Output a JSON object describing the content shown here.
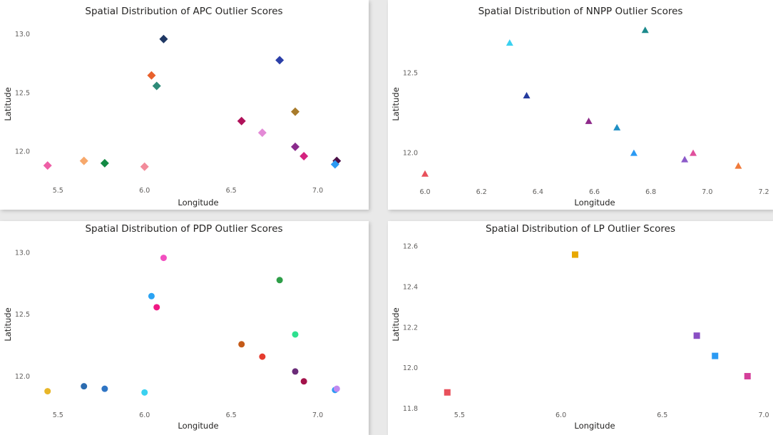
{
  "chart_data": [
    {
      "type": "scatter",
      "title": "Spatial Distribution of APC Outlier Scores",
      "xlabel": "Longitude",
      "ylabel": "Latitude",
      "xlim": [
        5.4,
        7.15
      ],
      "ylim": [
        11.82,
        13.05
      ],
      "xticks": [
        "5.5",
        "6.0",
        "6.5",
        "7.0"
      ],
      "yticks": [
        "12.0",
        "12.5",
        "13.0"
      ],
      "marker": "diamond",
      "grid": false,
      "points": [
        {
          "x": 6.11,
          "y": 12.96,
          "color": "#1f3864"
        },
        {
          "x": 6.78,
          "y": 12.78,
          "color": "#2b3fa8"
        },
        {
          "x": 6.04,
          "y": 12.65,
          "color": "#e8612c"
        },
        {
          "x": 6.07,
          "y": 12.56,
          "color": "#2e8b78"
        },
        {
          "x": 6.87,
          "y": 12.34,
          "color": "#a87b2b"
        },
        {
          "x": 6.56,
          "y": 12.26,
          "color": "#b0125a"
        },
        {
          "x": 6.68,
          "y": 12.16,
          "color": "#e38ad6"
        },
        {
          "x": 6.87,
          "y": 12.04,
          "color": "#8a2b8c"
        },
        {
          "x": 6.92,
          "y": 11.96,
          "color": "#d4237f"
        },
        {
          "x": 7.11,
          "y": 11.92,
          "color": "#4a1048"
        },
        {
          "x": 7.1,
          "y": 11.89,
          "color": "#2b9af3"
        },
        {
          "x": 5.44,
          "y": 11.88,
          "color": "#ee5fa6"
        },
        {
          "x": 5.65,
          "y": 11.92,
          "color": "#f7a86b"
        },
        {
          "x": 5.77,
          "y": 11.9,
          "color": "#138a44"
        },
        {
          "x": 6.0,
          "y": 11.87,
          "color": "#f28b9a"
        }
      ]
    },
    {
      "type": "scatter",
      "title": "Spatial Distribution of NNPP Outlier Scores",
      "xlabel": "Longitude",
      "ylabel": "Latitude",
      "xlim": [
        6.0,
        7.2
      ],
      "ylim": [
        11.86,
        12.78
      ],
      "xticks": [
        "6.0",
        "6.2",
        "6.4",
        "6.6",
        "6.8",
        "7.0",
        "7.2"
      ],
      "yticks": [
        "12.0",
        "12.5"
      ],
      "marker": "triangle",
      "grid": false,
      "points": [
        {
          "x": 6.78,
          "y": 12.77,
          "color": "#1c8a8c"
        },
        {
          "x": 6.3,
          "y": 12.69,
          "color": "#3ad1f0"
        },
        {
          "x": 6.36,
          "y": 12.36,
          "color": "#243b9e"
        },
        {
          "x": 6.58,
          "y": 12.2,
          "color": "#8e2a8a"
        },
        {
          "x": 6.68,
          "y": 12.16,
          "color": "#1f8fc4"
        },
        {
          "x": 6.74,
          "y": 12.0,
          "color": "#2b9af3"
        },
        {
          "x": 6.92,
          "y": 11.96,
          "color": "#8c5ac9"
        },
        {
          "x": 6.95,
          "y": 12.0,
          "color": "#e04f9c"
        },
        {
          "x": 7.11,
          "y": 11.92,
          "color": "#f07a3a"
        },
        {
          "x": 6.0,
          "y": 11.87,
          "color": "#e8505b"
        }
      ]
    },
    {
      "type": "scatter",
      "title": "Spatial Distribution of PDP Outlier Scores",
      "xlabel": "Longitude",
      "ylabel": "Latitude",
      "xlim": [
        5.4,
        7.15
      ],
      "ylim": [
        11.82,
        13.05
      ],
      "xticks": [
        "5.5",
        "6.0",
        "6.5",
        "7.0"
      ],
      "yticks": [
        "12.0",
        "12.5",
        "13.0"
      ],
      "marker": "circle",
      "grid": false,
      "points": [
        {
          "x": 6.11,
          "y": 12.96,
          "color": "#f24fc0"
        },
        {
          "x": 6.78,
          "y": 12.78,
          "color": "#2e9e48"
        },
        {
          "x": 6.04,
          "y": 12.65,
          "color": "#2ba3f3"
        },
        {
          "x": 6.07,
          "y": 12.56,
          "color": "#f01884"
        },
        {
          "x": 6.87,
          "y": 12.34,
          "color": "#2ee08f"
        },
        {
          "x": 6.56,
          "y": 12.26,
          "color": "#c45a18"
        },
        {
          "x": 6.68,
          "y": 12.16,
          "color": "#e53b2e"
        },
        {
          "x": 6.87,
          "y": 12.04,
          "color": "#6a2b78"
        },
        {
          "x": 6.92,
          "y": 11.96,
          "color": "#a3124a"
        },
        {
          "x": 7.1,
          "y": 11.89,
          "color": "#2b9af3"
        },
        {
          "x": 7.11,
          "y": 11.9,
          "color": "#c08af0"
        },
        {
          "x": 5.44,
          "y": 11.88,
          "color": "#e8b628"
        },
        {
          "x": 5.65,
          "y": 11.92,
          "color": "#2b6cb0"
        },
        {
          "x": 5.77,
          "y": 11.9,
          "color": "#2f75c4"
        },
        {
          "x": 6.0,
          "y": 11.87,
          "color": "#3ad1f0"
        }
      ]
    },
    {
      "type": "scatter",
      "title": "Spatial Distribution of LP Outlier Scores",
      "xlabel": "Longitude",
      "ylabel": "Latitude",
      "xlim": [
        5.33,
        7.0
      ],
      "ylim": [
        11.8,
        12.62
      ],
      "xticks": [
        "5.5",
        "6.0",
        "6.5",
        "7.0"
      ],
      "yticks": [
        "11.8",
        "12.0",
        "12.2",
        "12.4",
        "12.6"
      ],
      "marker": "square",
      "grid": false,
      "points": [
        {
          "x": 6.07,
          "y": 12.56,
          "color": "#e8a800"
        },
        {
          "x": 6.67,
          "y": 12.16,
          "color": "#8a4fc4"
        },
        {
          "x": 6.76,
          "y": 12.06,
          "color": "#2b9af3"
        },
        {
          "x": 6.92,
          "y": 11.96,
          "color": "#d43f9a"
        },
        {
          "x": 5.44,
          "y": 11.88,
          "color": "#e8505b"
        }
      ]
    }
  ]
}
